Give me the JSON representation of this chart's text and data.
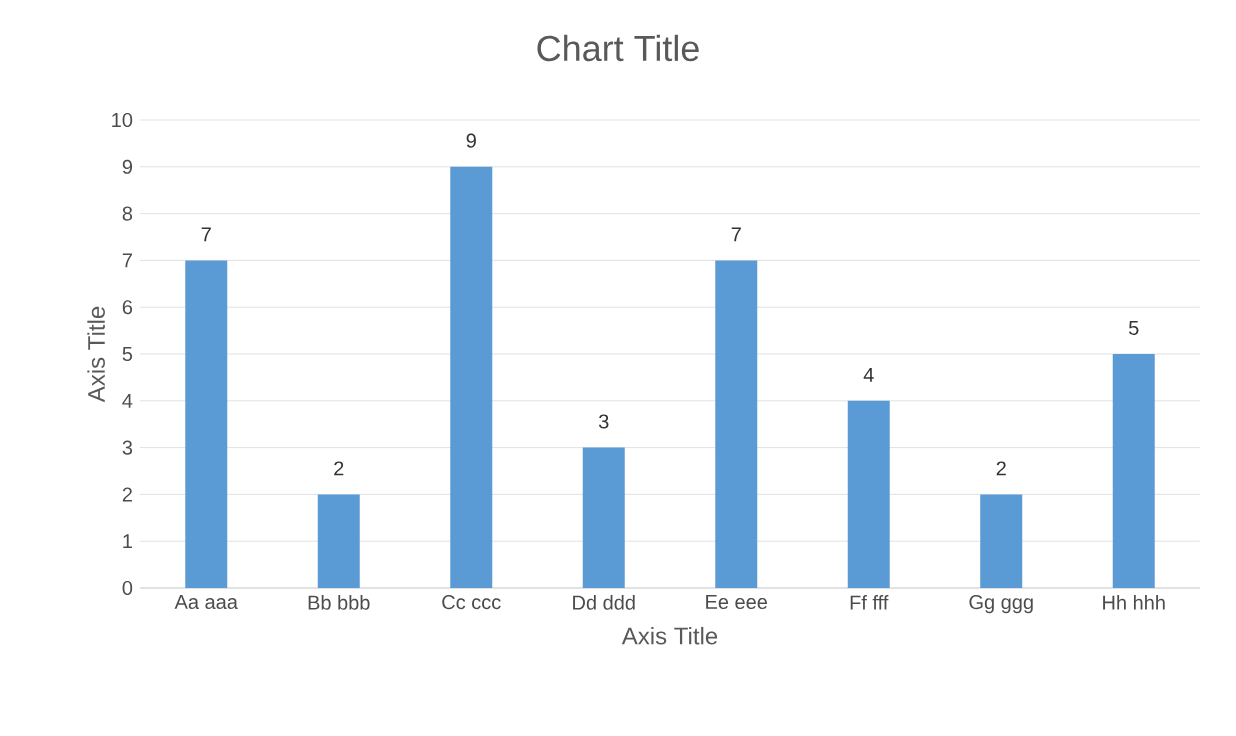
{
  "chart_data": {
    "type": "bar",
    "title": "Chart Title",
    "xlabel": "Axis Title",
    "ylabel": "Axis Title",
    "categories": [
      "Aa aaa",
      "Bb bbb",
      "Cc ccc",
      "Dd ddd",
      "Ee eee",
      "Ff fff",
      "Gg ggg",
      "Hh hhh"
    ],
    "values": [
      7,
      2,
      9,
      3,
      7,
      4,
      2,
      5
    ],
    "color": "#5b9bd5",
    "ylim": [
      0,
      10
    ],
    "yticks": [
      0,
      1,
      2,
      3,
      4,
      5,
      6,
      7,
      8,
      9,
      10
    ],
    "grid": "y",
    "data_labels": true
  }
}
